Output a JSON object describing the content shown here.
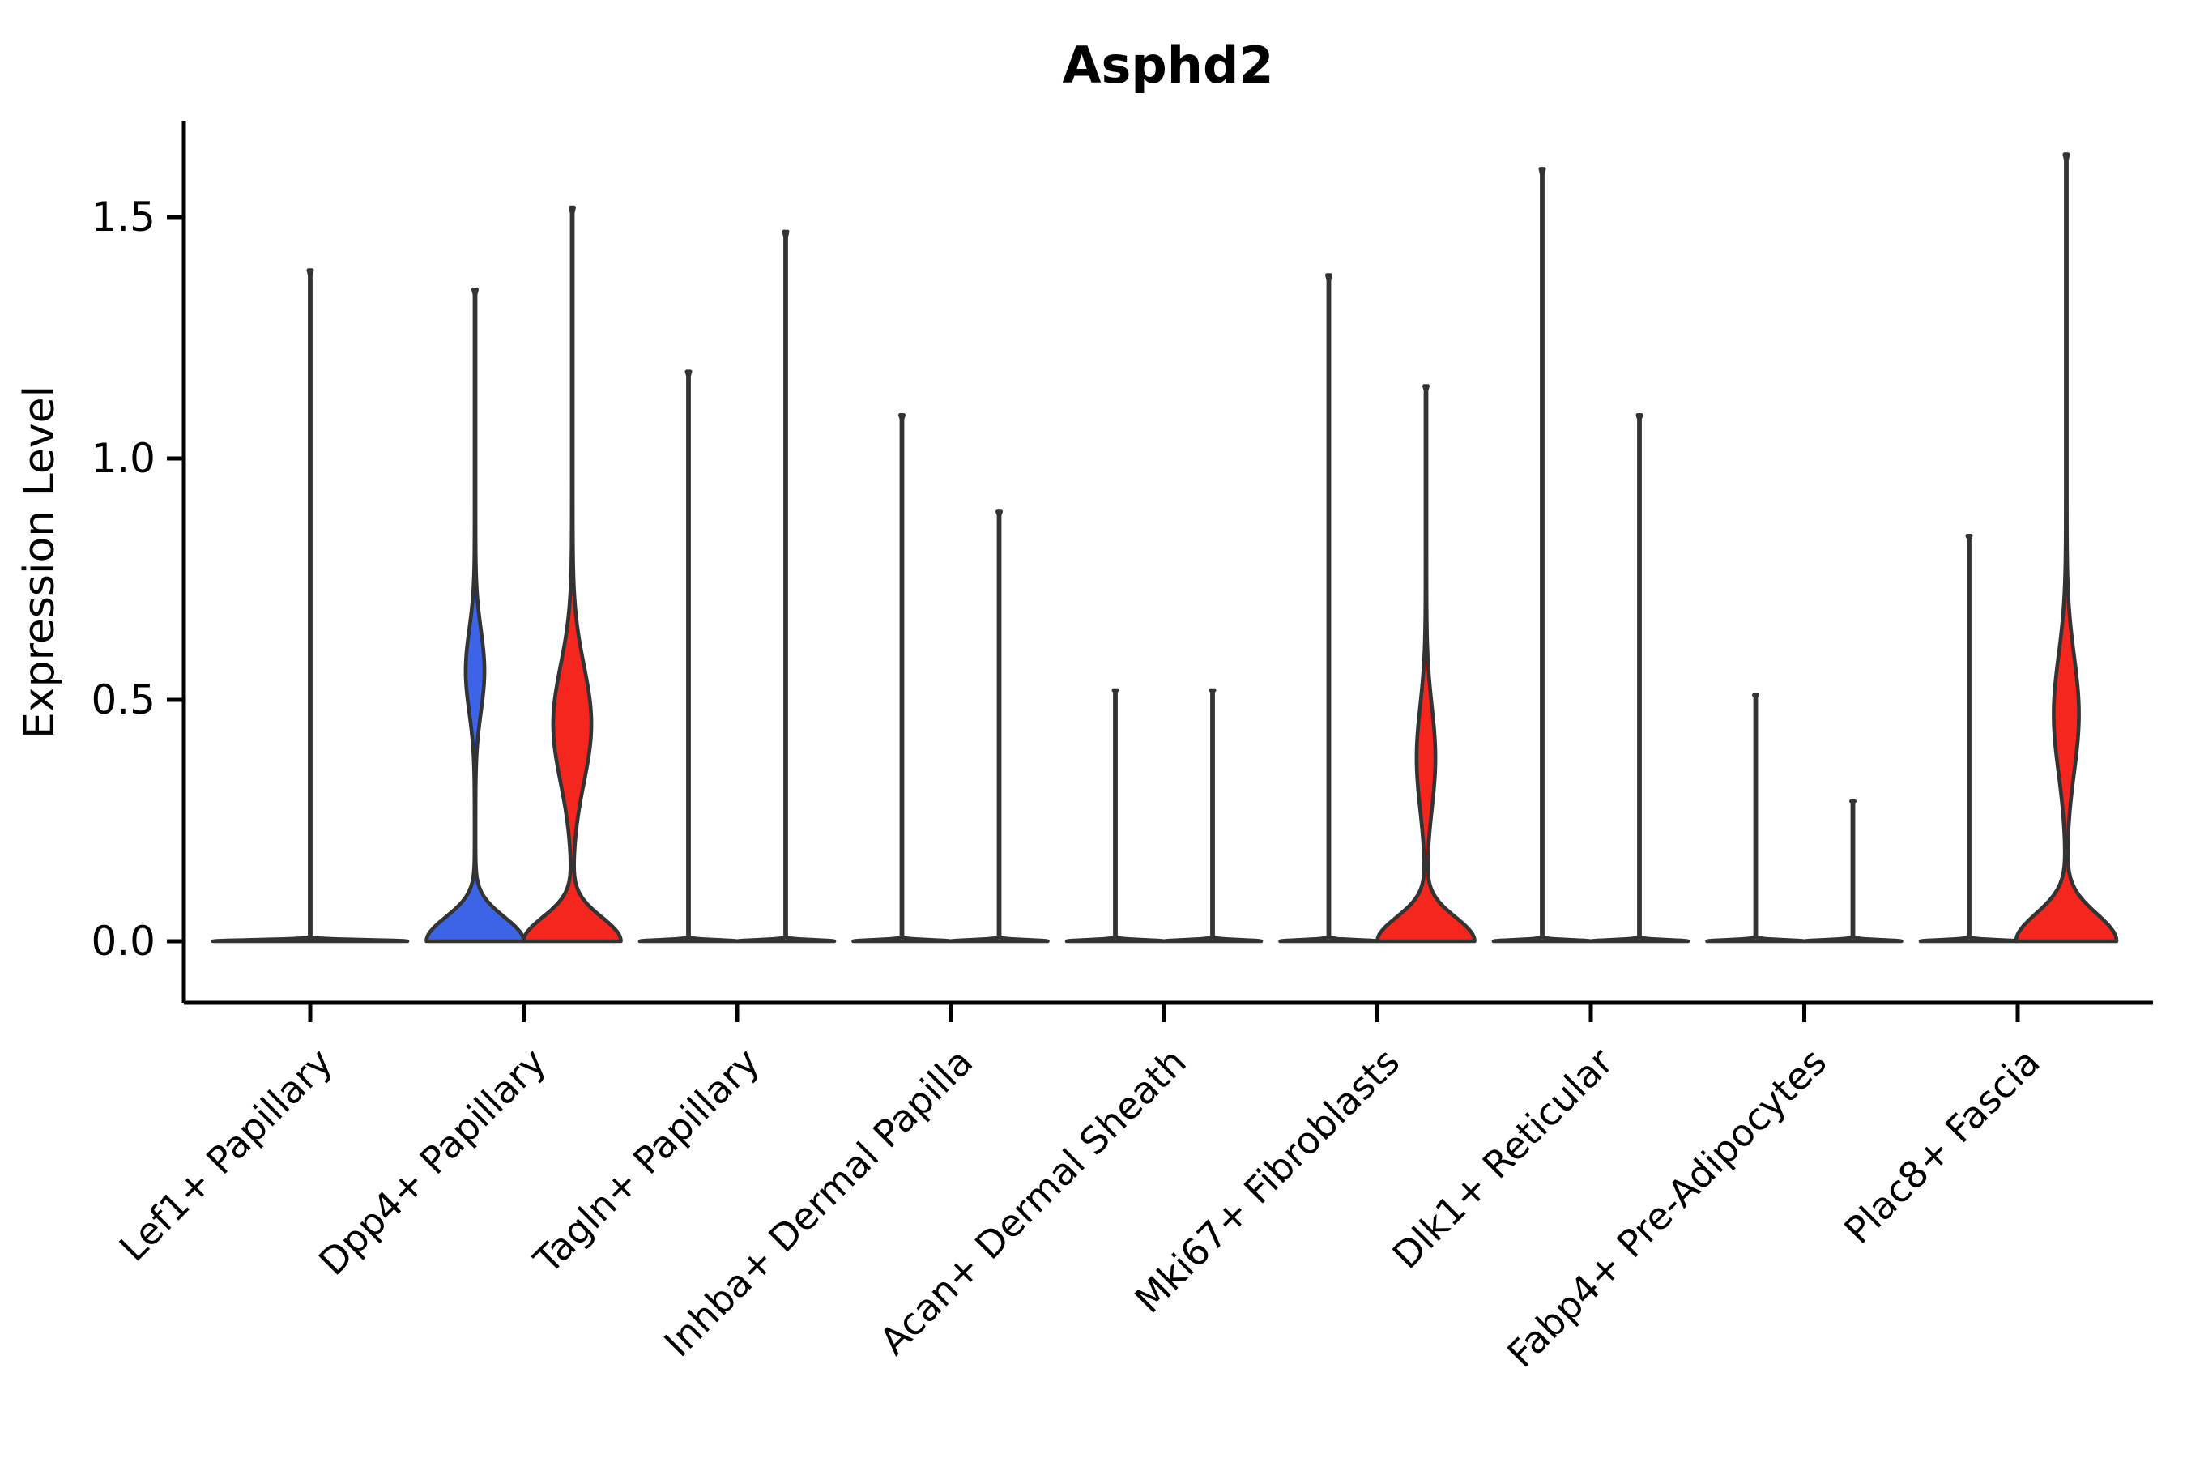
{
  "figure": {
    "title": "Asphd2",
    "y_axis_label": "Expression Level"
  },
  "chart_data": {
    "type": "violin",
    "title": "Asphd2",
    "xlabel": "",
    "ylabel": "Expression Level",
    "yticks": [
      0.0,
      0.5,
      1.0,
      1.5
    ],
    "ylim": [
      -0.13,
      1.7
    ],
    "grid": false,
    "legend": "none",
    "xticklabel_rotation": 45,
    "palette": {
      "blue": "#3D64E6",
      "red": "#F5261D",
      "outline": "#333333",
      "axis": "#000000"
    },
    "categories": [
      "Lef1+ Papillary",
      "Dpp4+ Papillary",
      "Tagln+ Papillary",
      "Inhba+ Dermal Papilla",
      "Acan+ Dermal Sheath",
      "Mki67+ Fibroblasts",
      "Dlk1+ Reticular",
      "Fabp4+ Pre-Adipocytes",
      "Plac8+ Fascia"
    ],
    "groups": [
      {
        "category": "Lef1+ Papillary",
        "violins": [
          {
            "slot": "center",
            "fill": "none",
            "max": 1.39,
            "base_halfwidth": 120,
            "base_scale": 0.004,
            "body": null
          }
        ]
      },
      {
        "category": "Dpp4+ Papillary",
        "violins": [
          {
            "slot": "left",
            "fill": "blue",
            "max": 1.35,
            "base_halfwidth": 60,
            "base_scale": 0.07,
            "body": {
              "center": 0.56,
              "amp": 11,
              "sigma": 0.12
            }
          },
          {
            "slot": "right",
            "fill": "red",
            "max": 1.52,
            "base_halfwidth": 60,
            "base_scale": 0.07,
            "body": {
              "center": 0.45,
              "amp": 23,
              "sigma": 0.17
            }
          }
        ]
      },
      {
        "category": "Tagln+ Papillary",
        "violins": [
          {
            "slot": "left",
            "fill": "blue",
            "max": 1.18,
            "base_halfwidth": 60,
            "base_scale": 0.004,
            "body": null
          },
          {
            "slot": "right",
            "fill": "red",
            "max": 1.47,
            "base_halfwidth": 60,
            "base_scale": 0.004,
            "body": null
          }
        ]
      },
      {
        "category": "Inhba+ Dermal Papilla",
        "violins": [
          {
            "slot": "left",
            "fill": "blue",
            "max": 1.09,
            "base_halfwidth": 60,
            "base_scale": 0.004,
            "body": null
          },
          {
            "slot": "right",
            "fill": "red",
            "max": 0.89,
            "base_halfwidth": 60,
            "base_scale": 0.004,
            "body": null
          }
        ]
      },
      {
        "category": "Acan+ Dermal Sheath",
        "violins": [
          {
            "slot": "left",
            "fill": "blue",
            "max": 0.52,
            "base_halfwidth": 60,
            "base_scale": 0.004,
            "body": null
          },
          {
            "slot": "right",
            "fill": "red",
            "max": 0.52,
            "base_halfwidth": 60,
            "base_scale": 0.004,
            "body": null
          }
        ]
      },
      {
        "category": "Mki67+ Fibroblasts",
        "violins": [
          {
            "slot": "left",
            "fill": "blue",
            "max": 1.38,
            "base_halfwidth": 60,
            "base_scale": 0.004,
            "body": null
          },
          {
            "slot": "right",
            "fill": "red",
            "max": 1.15,
            "base_halfwidth": 60,
            "base_scale": 0.07,
            "body": {
              "center": 0.38,
              "amp": 11,
              "sigma": 0.15
            }
          }
        ]
      },
      {
        "category": "Dlk1+ Reticular",
        "violins": [
          {
            "slot": "left",
            "fill": "blue",
            "max": 1.6,
            "base_halfwidth": 60,
            "base_scale": 0.004,
            "body": null
          },
          {
            "slot": "right",
            "fill": "red",
            "max": 1.09,
            "base_halfwidth": 60,
            "base_scale": 0.004,
            "body": null
          }
        ]
      },
      {
        "category": "Fabp4+ Pre-Adipocytes",
        "violins": [
          {
            "slot": "left",
            "fill": "blue",
            "max": 0.51,
            "base_halfwidth": 60,
            "base_scale": 0.004,
            "body": null
          },
          {
            "slot": "right",
            "fill": "red",
            "max": 0.29,
            "base_halfwidth": 60,
            "base_scale": 0.004,
            "body": null
          }
        ]
      },
      {
        "category": "Plac8+ Fascia",
        "violins": [
          {
            "slot": "left",
            "fill": "blue",
            "max": 0.84,
            "base_halfwidth": 60,
            "base_scale": 0.004,
            "body": null
          },
          {
            "slot": "right",
            "fill": "red",
            "max": 1.63,
            "base_halfwidth": 62,
            "base_scale": 0.08,
            "body": {
              "center": 0.47,
              "amp": 15,
              "sigma": 0.17
            }
          }
        ]
      }
    ]
  }
}
